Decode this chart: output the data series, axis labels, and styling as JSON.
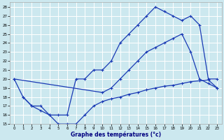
{
  "title": "Graphe des températures (°c)",
  "bg_color": "#cce8ef",
  "grid_color": "#ffffff",
  "line_color": "#1a3ab5",
  "xlim": [
    -0.5,
    23.5
  ],
  "ylim": [
    15,
    28.5
  ],
  "xticks": [
    0,
    1,
    2,
    3,
    4,
    5,
    6,
    7,
    8,
    9,
    10,
    11,
    12,
    13,
    14,
    15,
    16,
    17,
    18,
    19,
    20,
    21,
    22,
    23
  ],
  "yticks": [
    15,
    16,
    17,
    18,
    19,
    20,
    21,
    22,
    23,
    24,
    25,
    26,
    27,
    28
  ],
  "curve_top_x": [
    0,
    1,
    2,
    3,
    4,
    5,
    6,
    7,
    8,
    9,
    10,
    11,
    12,
    13,
    14,
    15,
    16,
    17,
    18,
    19,
    20,
    21,
    22,
    23
  ],
  "curve_top_y": [
    20,
    18,
    17,
    17,
    16,
    16,
    16,
    20,
    20,
    21,
    21,
    22,
    24,
    25,
    26,
    27,
    28,
    27.5,
    27,
    26.5,
    27,
    26,
    20,
    20
  ],
  "curve_mid_x": [
    0,
    10,
    11,
    12,
    13,
    14,
    15,
    16,
    17,
    18,
    19,
    20,
    21,
    22,
    23
  ],
  "curve_mid_y": [
    20,
    18.5,
    19,
    20,
    21,
    22,
    23,
    23.5,
    24,
    24.5,
    25,
    23,
    20,
    19.5,
    19
  ],
  "curve_bot_x": [
    1,
    2,
    3,
    4,
    5,
    6,
    7,
    8,
    9,
    10,
    11,
    12,
    13,
    14,
    15,
    16,
    17,
    18,
    19,
    20,
    21,
    22,
    23
  ],
  "curve_bot_y": [
    18,
    17,
    16.5,
    16,
    15,
    15,
    15,
    16,
    17,
    17.5,
    17.8,
    18,
    18.3,
    18.5,
    18.8,
    19,
    19.2,
    19.3,
    19.5,
    19.7,
    19.8,
    19.9,
    19
  ]
}
